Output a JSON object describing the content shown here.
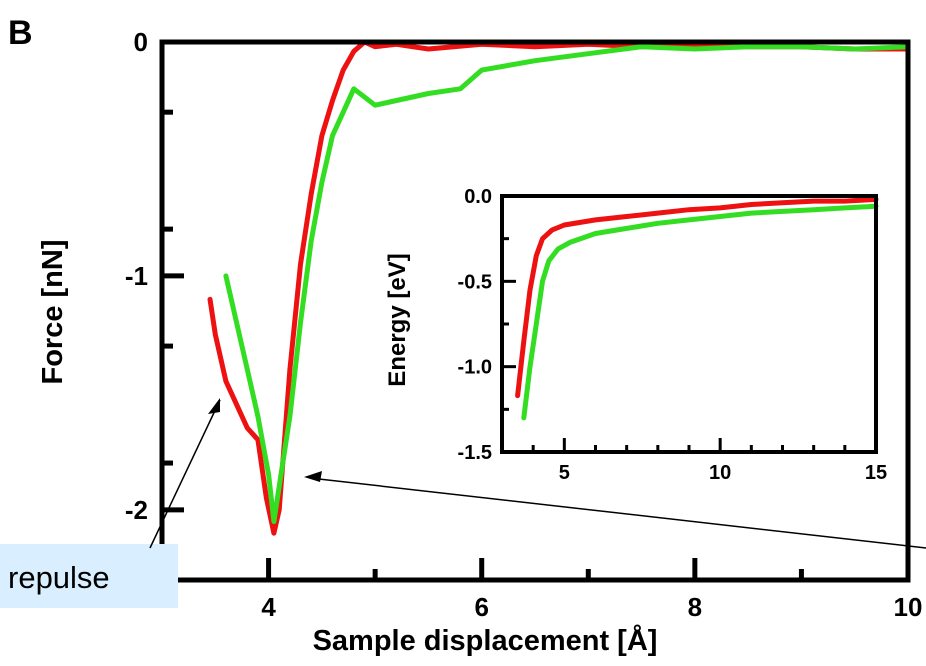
{
  "panel_label": "B",
  "annotation": {
    "text": "repulse"
  },
  "colors": {
    "series_1": "#ee1111",
    "series_2": "#33dd22",
    "axis": "#000000",
    "callout_bg": "#d9efff"
  },
  "chart_data": [
    {
      "type": "line",
      "title": "",
      "xlabel": "Sample displacement [Å]",
      "ylabel": "Force [nN]",
      "xlim": [
        3.0,
        10.0
      ],
      "ylim": [
        -2.3,
        0.0
      ],
      "xticks": [
        4,
        6,
        8,
        10
      ],
      "xtick_labels": [
        "4",
        "6",
        "8",
        "10"
      ],
      "yticks": [
        0,
        -1,
        -2
      ],
      "ytick_labels": [
        "0",
        "-1",
        "-2"
      ],
      "grid": false,
      "series": [
        {
          "color": "#ee1111",
          "x": [
            3.45,
            3.5,
            3.6,
            3.7,
            3.8,
            3.9,
            3.98,
            4.05,
            4.1,
            4.2,
            4.3,
            4.4,
            4.5,
            4.6,
            4.7,
            4.8,
            4.9,
            5.0,
            5.2,
            5.5,
            6.0,
            6.5,
            7.0,
            7.5,
            8.0,
            8.5,
            9.0,
            9.5,
            10.0
          ],
          "y": [
            -1.1,
            -1.25,
            -1.45,
            -1.55,
            -1.65,
            -1.7,
            -1.95,
            -2.1,
            -2.0,
            -1.4,
            -0.95,
            -0.65,
            -0.4,
            -0.25,
            -0.12,
            -0.04,
            0.0,
            -0.02,
            -0.01,
            -0.03,
            -0.01,
            -0.02,
            -0.01,
            -0.02,
            -0.01,
            -0.02,
            -0.02,
            -0.03,
            -0.03
          ]
        },
        {
          "color": "#33dd22",
          "x": [
            3.6,
            3.7,
            3.8,
            3.9,
            4.0,
            4.05,
            4.1,
            4.2,
            4.3,
            4.4,
            4.5,
            4.6,
            4.7,
            4.8,
            5.0,
            5.2,
            5.5,
            5.8,
            6.0,
            6.5,
            7.0,
            7.5,
            8.0,
            8.5,
            9.0,
            9.5,
            10.0
          ],
          "y": [
            -1.0,
            -1.2,
            -1.4,
            -1.6,
            -1.85,
            -2.05,
            -1.9,
            -1.6,
            -1.2,
            -0.85,
            -0.6,
            -0.4,
            -0.3,
            -0.2,
            -0.27,
            -0.25,
            -0.22,
            -0.2,
            -0.12,
            -0.08,
            -0.05,
            -0.02,
            -0.03,
            -0.02,
            -0.02,
            -0.03,
            -0.02
          ]
        }
      ]
    },
    {
      "type": "line",
      "title": "",
      "xlabel": "",
      "ylabel": "Energy [eV]",
      "xlim": [
        3.0,
        15.0
      ],
      "ylim": [
        -1.5,
        0.0
      ],
      "xticks": [
        5,
        10,
        15
      ],
      "xtick_labels": [
        "5",
        "10",
        "15"
      ],
      "yticks": [
        0.0,
        -0.5,
        -1.0,
        -1.5
      ],
      "ytick_labels": [
        "0.0",
        "-0.5",
        "-1.0",
        "-1.5"
      ],
      "grid": false,
      "series": [
        {
          "color": "#ee1111",
          "x": [
            3.5,
            3.7,
            3.9,
            4.1,
            4.3,
            4.6,
            5.0,
            6.0,
            7.0,
            8.0,
            9.0,
            10.0,
            11.0,
            12.0,
            13.0,
            14.0,
            15.0
          ],
          "y": [
            -1.17,
            -0.85,
            -0.55,
            -0.35,
            -0.25,
            -0.2,
            -0.17,
            -0.14,
            -0.12,
            -0.1,
            -0.08,
            -0.07,
            -0.05,
            -0.04,
            -0.03,
            -0.03,
            -0.02
          ]
        },
        {
          "color": "#33dd22",
          "x": [
            3.7,
            3.9,
            4.1,
            4.3,
            4.5,
            4.8,
            5.2,
            6.0,
            7.0,
            8.0,
            9.0,
            10.0,
            11.0,
            12.0,
            13.0,
            14.0,
            15.0
          ],
          "y": [
            -1.3,
            -1.0,
            -0.75,
            -0.5,
            -0.38,
            -0.31,
            -0.27,
            -0.22,
            -0.19,
            -0.16,
            -0.14,
            -0.12,
            -0.1,
            -0.09,
            -0.08,
            -0.07,
            -0.06
          ]
        }
      ]
    }
  ]
}
